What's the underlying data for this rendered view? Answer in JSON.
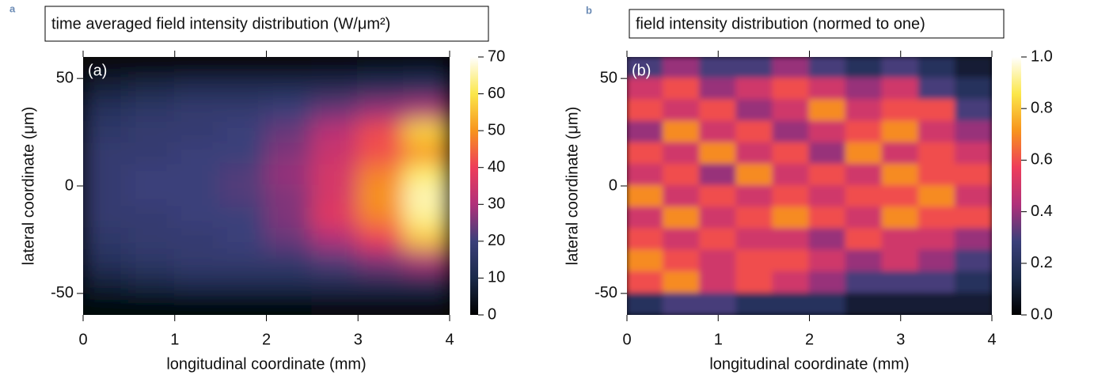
{
  "chart_data": [
    {
      "type": "heatmap",
      "panel_label": "a",
      "title": "time averaged field intensity distribution (W/μm²)",
      "inset_label": "(a)",
      "x_label": "longitudinal coordinate (mm)",
      "y_label": "lateral coordinate (μm)",
      "xlim": [
        0,
        4
      ],
      "xticks": [
        0,
        1,
        2,
        3,
        4
      ],
      "ylim": [
        -60,
        60
      ],
      "yticks": [
        -50,
        0,
        50
      ],
      "clim": [
        0,
        70
      ],
      "cticks": [
        0,
        10,
        20,
        30,
        40,
        50,
        60,
        70
      ],
      "colormap": [
        "#000000",
        "#1b2a4a",
        "#3a3f7a",
        "#b0307a",
        "#ee3d5a",
        "#f7941d",
        "#fbe74a",
        "#ffffff"
      ],
      "x": [
        0.25,
        0.75,
        1.25,
        1.75,
        2.25,
        2.75,
        3.25,
        3.75
      ],
      "y": [
        55,
        45,
        35,
        25,
        15,
        5,
        -5,
        -15,
        -25,
        -35,
        -45,
        -55
      ],
      "z": [
        [
          3,
          3,
          3,
          3,
          3,
          4,
          5,
          6
        ],
        [
          8,
          10,
          12,
          12,
          12,
          12,
          14,
          15
        ],
        [
          14,
          16,
          18,
          18,
          20,
          24,
          28,
          30
        ],
        [
          16,
          18,
          18,
          20,
          24,
          32,
          42,
          58
        ],
        [
          18,
          18,
          20,
          20,
          26,
          34,
          42,
          50
        ],
        [
          18,
          20,
          20,
          22,
          28,
          36,
          48,
          62
        ],
        [
          18,
          20,
          20,
          22,
          26,
          36,
          50,
          66
        ],
        [
          18,
          18,
          20,
          20,
          26,
          38,
          48,
          64
        ],
        [
          16,
          18,
          18,
          20,
          24,
          30,
          40,
          56
        ],
        [
          14,
          16,
          18,
          18,
          18,
          22,
          26,
          30
        ],
        [
          8,
          10,
          12,
          12,
          12,
          12,
          12,
          12
        ],
        [
          2,
          2,
          2,
          2,
          2,
          3,
          3,
          3
        ]
      ]
    },
    {
      "type": "heatmap",
      "panel_label": "b",
      "title": "field intensity distribution (normed to one)",
      "inset_label": "(b)",
      "x_label": "longitudinal coordinate (mm)",
      "y_label": "lateral coordinate (μm)",
      "xlim": [
        0,
        4
      ],
      "xticks": [
        0,
        1,
        2,
        3,
        4
      ],
      "ylim": [
        -60,
        60
      ],
      "yticks": [
        -50,
        0,
        50
      ],
      "clim": [
        0,
        1
      ],
      "cticks": [
        {
          "value": 0,
          "label": "0.0"
        },
        0.2,
        0.4,
        0.6,
        0.8,
        {
          "value": 1,
          "label": "1.0"
        }
      ],
      "colormap": [
        "#000000",
        "#1b2a4a",
        "#3a3f7a",
        "#b0307a",
        "#ee3d5a",
        "#f7941d",
        "#fbe74a",
        "#ffffff"
      ],
      "x": [
        0.2,
        0.6,
        1.0,
        1.4,
        1.8,
        2.2,
        2.6,
        3.0,
        3.4,
        3.8
      ],
      "y": [
        55,
        45,
        35,
        25,
        15,
        5,
        -5,
        -15,
        -25,
        -35,
        -45,
        -55
      ],
      "z": [
        [
          0.3,
          0.4,
          0.3,
          0.3,
          0.4,
          0.3,
          0.2,
          0.3,
          0.2,
          0.1
        ],
        [
          0.5,
          0.6,
          0.4,
          0.5,
          0.6,
          0.5,
          0.4,
          0.5,
          0.3,
          0.2
        ],
        [
          0.6,
          0.5,
          0.6,
          0.4,
          0.5,
          0.7,
          0.5,
          0.6,
          0.6,
          0.3
        ],
        [
          0.4,
          0.7,
          0.5,
          0.6,
          0.4,
          0.5,
          0.6,
          0.7,
          0.5,
          0.4
        ],
        [
          0.6,
          0.5,
          0.7,
          0.5,
          0.6,
          0.4,
          0.7,
          0.5,
          0.6,
          0.5
        ],
        [
          0.5,
          0.6,
          0.4,
          0.7,
          0.5,
          0.6,
          0.5,
          0.7,
          0.6,
          0.6
        ],
        [
          0.7,
          0.5,
          0.6,
          0.5,
          0.6,
          0.5,
          0.6,
          0.6,
          0.7,
          0.5
        ],
        [
          0.5,
          0.7,
          0.5,
          0.6,
          0.7,
          0.6,
          0.5,
          0.7,
          0.6,
          0.6
        ],
        [
          0.6,
          0.5,
          0.6,
          0.5,
          0.5,
          0.4,
          0.6,
          0.5,
          0.5,
          0.4
        ],
        [
          0.7,
          0.6,
          0.5,
          0.6,
          0.6,
          0.5,
          0.4,
          0.5,
          0.4,
          0.3
        ],
        [
          0.6,
          0.7,
          0.5,
          0.6,
          0.5,
          0.4,
          0.3,
          0.3,
          0.3,
          0.2
        ],
        [
          0.2,
          0.3,
          0.3,
          0.2,
          0.2,
          0.2,
          0.1,
          0.1,
          0.1,
          0.1
        ]
      ]
    }
  ]
}
